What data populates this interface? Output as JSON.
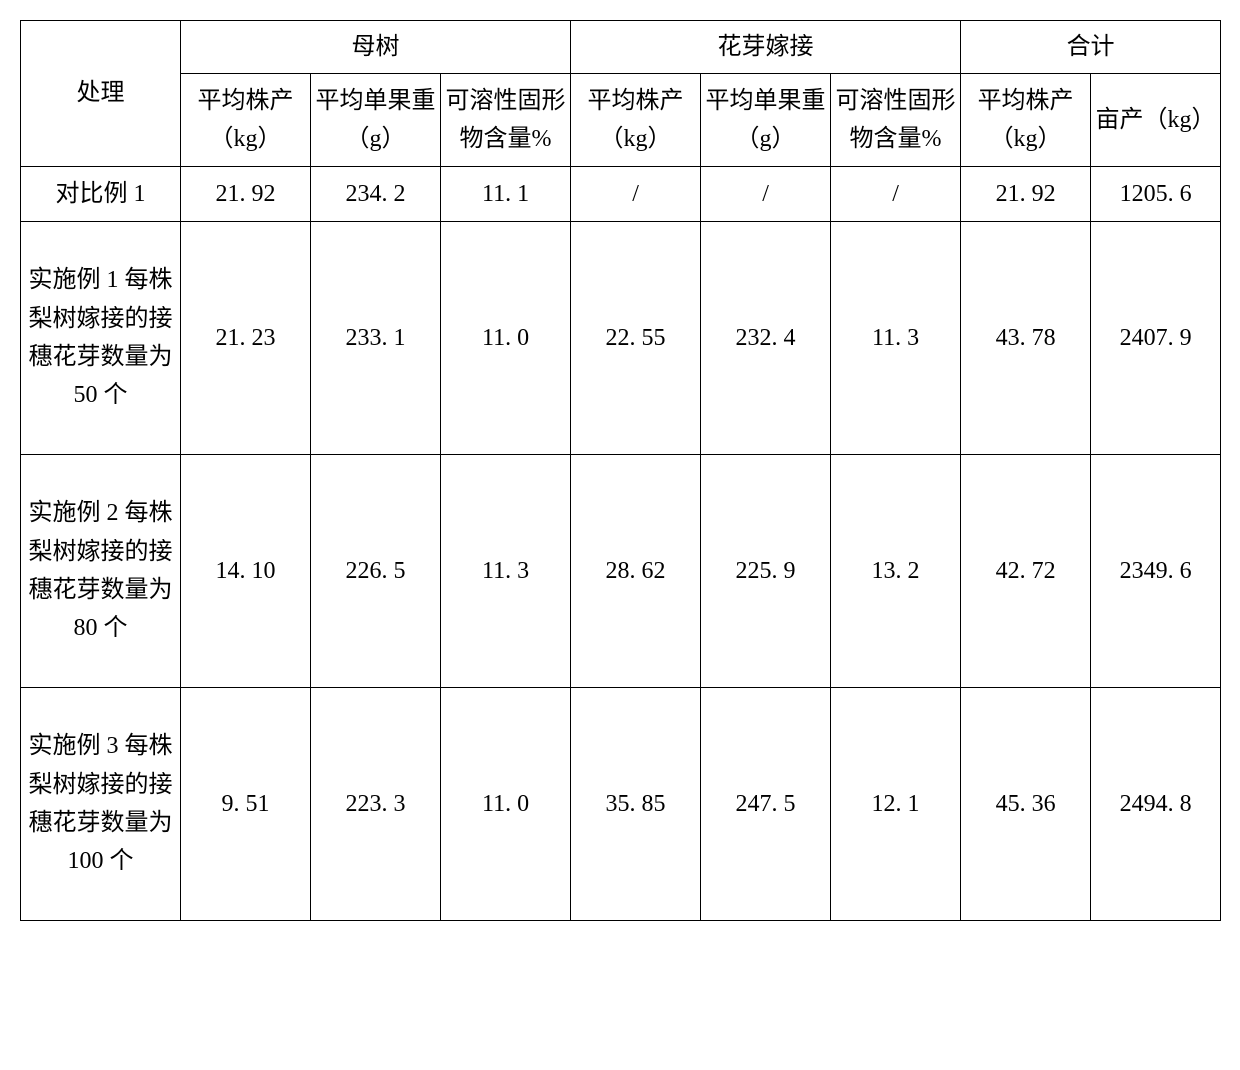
{
  "table": {
    "type": "table",
    "border_color": "#000000",
    "background_color": "#ffffff",
    "font_family": "SimSun",
    "cell_fontsize": 24,
    "header": {
      "treatment": "处理",
      "groups": [
        "母树",
        "花芽嫁接",
        "合计"
      ],
      "sub_mother": [
        "平均株产（kg）",
        "平均单果重（g）",
        "可溶性固形物含量%"
      ],
      "sub_graft": [
        "平均株产（kg）",
        "平均单果重（g）",
        "可溶性固形物含量%"
      ],
      "sub_total": [
        "平均株产（kg）",
        "亩产（kg）"
      ]
    },
    "rows": [
      {
        "treatment": "对比例 1",
        "mother": [
          "21. 92",
          "234. 2",
          "11. 1"
        ],
        "graft": [
          "/",
          "/",
          "/"
        ],
        "total": [
          "21. 92",
          "1205. 6"
        ],
        "tall": false
      },
      {
        "treatment": "实施例 1 每株梨树嫁接的接穗花芽数量为 50 个",
        "mother": [
          "21. 23",
          "233. 1",
          "11. 0"
        ],
        "graft": [
          "22. 55",
          "232. 4",
          "11. 3"
        ],
        "total": [
          "43. 78",
          "2407. 9"
        ],
        "tall": true
      },
      {
        "treatment": "实施例 2 每株梨树嫁接的接穗花芽数量为 80 个",
        "mother": [
          "14. 10",
          "226. 5",
          "11. 3"
        ],
        "graft": [
          "28. 62",
          "225. 9",
          "13. 2"
        ],
        "total": [
          "42. 72",
          "2349. 6"
        ],
        "tall": true
      },
      {
        "treatment": "实施例 3 每株梨树嫁接的接穗花芽数量为 100 个",
        "mother": [
          "9. 51",
          "223. 3",
          "11. 0"
        ],
        "graft": [
          "35. 85",
          "247. 5",
          "12. 1"
        ],
        "total": [
          "45. 36",
          "2494. 8"
        ],
        "tall": true
      }
    ]
  }
}
